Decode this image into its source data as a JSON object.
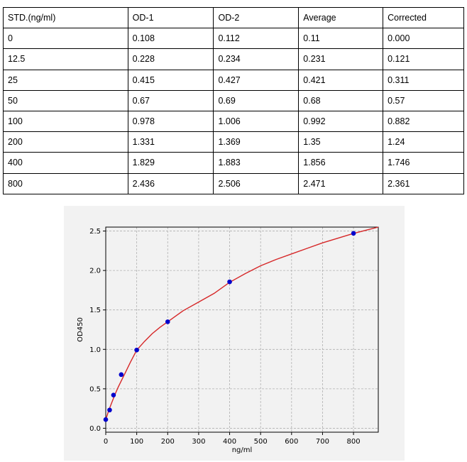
{
  "table": {
    "headers": [
      "STD.(ng/ml)",
      "OD-1",
      "OD-2",
      "Average",
      "Corrected"
    ],
    "rows": [
      [
        "0",
        "0.108",
        "0.112",
        "0.11",
        "0.000"
      ],
      [
        "12.5",
        "0.228",
        "0.234",
        "0.231",
        "0.121"
      ],
      [
        "25",
        "0.415",
        "0.427",
        "0.421",
        "0.311"
      ],
      [
        "50",
        "0.67",
        "0.69",
        "0.68",
        "0.57"
      ],
      [
        "100",
        "0.978",
        "1.006",
        "0.992",
        "0.882"
      ],
      [
        "200",
        "1.331",
        "1.369",
        "1.35",
        "1.24"
      ],
      [
        "400",
        "1.829",
        "1.883",
        "1.856",
        "1.746"
      ],
      [
        "800",
        "2.436",
        "2.506",
        "2.471",
        "2.361"
      ]
    ]
  },
  "chart_data": {
    "type": "scatter",
    "title": "",
    "xlabel": "ng/ml",
    "ylabel": "OD450",
    "xlim": [
      0,
      880
    ],
    "ylim": [
      -0.05,
      2.55
    ],
    "xticks": [
      0,
      100,
      200,
      300,
      400,
      500,
      600,
      700,
      800
    ],
    "yticks": [
      0.0,
      0.5,
      1.0,
      1.5,
      2.0,
      2.5
    ],
    "grid": true,
    "series": [
      {
        "x": [
          0,
          12.5,
          25,
          50,
          100,
          200,
          400,
          800
        ],
        "y": [
          0.11,
          0.231,
          0.421,
          0.68,
          0.992,
          1.35,
          1.856,
          2.471
        ],
        "color": "#0000cc",
        "marker": "circle"
      }
    ],
    "fit_curve": {
      "color": "#d62728",
      "x": [
        0,
        5,
        10,
        20,
        30,
        40,
        50,
        60,
        80,
        100,
        125,
        150,
        175,
        200,
        250,
        300,
        350,
        400,
        450,
        500,
        550,
        600,
        650,
        700,
        750,
        800,
        850,
        880
      ],
      "y": [
        0.11,
        0.17,
        0.23,
        0.33,
        0.43,
        0.52,
        0.6,
        0.68,
        0.84,
        0.99,
        1.1,
        1.2,
        1.28,
        1.35,
        1.49,
        1.6,
        1.71,
        1.85,
        1.96,
        2.06,
        2.14,
        2.21,
        2.28,
        2.35,
        2.41,
        2.47,
        2.52,
        2.55
      ]
    }
  }
}
